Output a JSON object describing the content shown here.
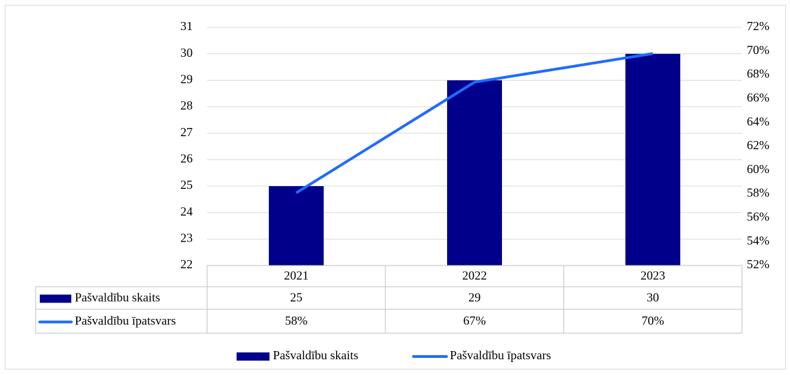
{
  "chart_data": {
    "type": "bar-line",
    "categories": [
      "2021",
      "2022",
      "2023"
    ],
    "series": [
      {
        "name": "Pašvaldību skaits",
        "type": "bar",
        "color": "#00008b",
        "values": [
          25,
          29,
          30
        ]
      },
      {
        "name": "Pašvaldību īpatsvars",
        "type": "line",
        "axis": "y2",
        "color": "#1f6bff",
        "values": [
          58.1,
          67.4,
          69.8
        ],
        "value_labels": [
          "58%",
          "67%",
          "70%"
        ]
      }
    ],
    "ylim": [
      22,
      31
    ],
    "yticks": [
      22,
      23,
      24,
      25,
      26,
      27,
      28,
      29,
      30,
      31
    ],
    "y2lim": [
      52,
      72
    ],
    "y2ticks": [
      {
        "value": 52,
        "label": "52%"
      },
      {
        "value": 54,
        "label": "54%"
      },
      {
        "value": 56,
        "label": "56%"
      },
      {
        "value": 58,
        "label": "58%"
      },
      {
        "value": 60,
        "label": "60%"
      },
      {
        "value": 62,
        "label": "62%"
      },
      {
        "value": 64,
        "label": "64%"
      },
      {
        "value": 66,
        "label": "66%"
      },
      {
        "value": 68,
        "label": "68%"
      },
      {
        "value": 70,
        "label": "70%"
      },
      {
        "value": 72,
        "label": "72%"
      }
    ],
    "grid": true,
    "data_table": true,
    "legend": "bottom"
  }
}
